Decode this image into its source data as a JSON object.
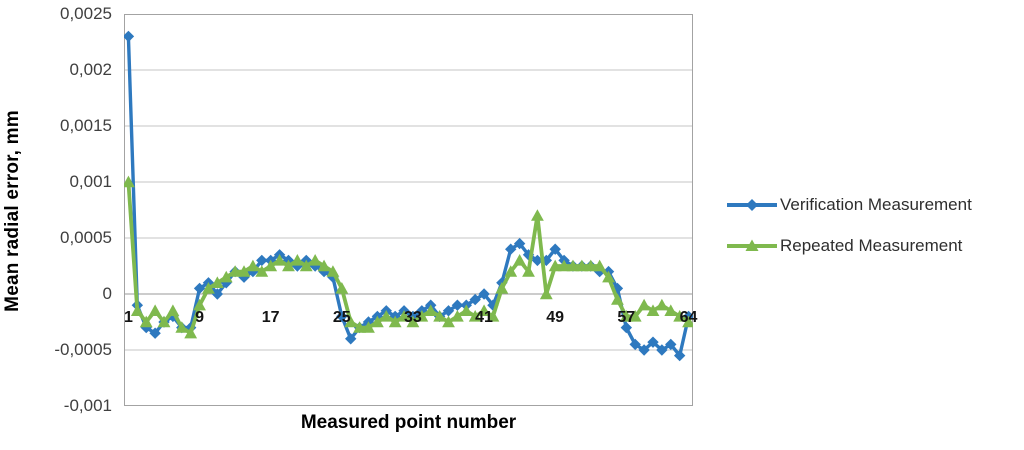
{
  "chart": {
    "y_axis_title": "Mean radial error, mm",
    "x_axis_title": "Measured point number",
    "y_tick_labels": [
      "0,0025",
      "0,002",
      "0,0015",
      "0,001",
      "0,0005",
      "0",
      "-0,0005",
      "-0,001"
    ],
    "x_tick_labels": [
      "1",
      "9",
      "17",
      "25",
      "33",
      "41",
      "49",
      "57",
      "64"
    ],
    "grid_color": "#c6c6c6",
    "border_color": "#a3a3a3",
    "zero_line_color": "#9a9a9a",
    "background": "#ffffff"
  },
  "legend": {
    "position": "right",
    "items": [
      {
        "label": "Verification Measurement",
        "marker": "diamond-icon"
      },
      {
        "label": "Repeated Measurement",
        "marker": "triangle-icon"
      }
    ]
  },
  "chart_data": {
    "type": "line",
    "title": "",
    "xlabel": "Measured point number",
    "ylabel": "Mean radial error, mm",
    "x_range": [
      1,
      64
    ],
    "ylim": [
      -0.001,
      0.0025
    ],
    "y_tick_step": 0.0005,
    "decimal_separator": ",",
    "grid": true,
    "legend_position": "right",
    "x_ticks_shown": [
      1,
      9,
      17,
      25,
      33,
      41,
      49,
      57,
      64
    ],
    "series": [
      {
        "name": "Verification Measurement",
        "color": "#2e79bf",
        "marker": "diamond",
        "line_width": 3.4,
        "values": [
          0.0023,
          -0.0001,
          -0.0003,
          -0.00035,
          -0.00025,
          -0.0002,
          -0.0003,
          -0.0003,
          5e-05,
          0.0001,
          0.0,
          0.0001,
          0.0002,
          0.00015,
          0.0002,
          0.0003,
          0.0003,
          0.00035,
          0.0003,
          0.00025,
          0.0003,
          0.00025,
          0.0002,
          0.00015,
          -0.0002,
          -0.0004,
          -0.0003,
          -0.00025,
          -0.0002,
          -0.00015,
          -0.0002,
          -0.00015,
          -0.0002,
          -0.00015,
          -0.0001,
          -0.0002,
          -0.00015,
          -0.0001,
          -0.0001,
          -5e-05,
          0.0,
          -0.0001,
          0.0001,
          0.0004,
          0.00045,
          0.00035,
          0.0003,
          0.0003,
          0.0004,
          0.0003,
          0.00025,
          0.00025,
          0.00025,
          0.0002,
          0.0002,
          5e-05,
          -0.0003,
          -0.00045,
          -0.0005,
          -0.00043,
          -0.0005,
          -0.00045,
          -0.00055,
          -0.0002
        ]
      },
      {
        "name": "Repeated Measurement",
        "color": "#7fb94e",
        "marker": "triangle",
        "line_width": 3.8,
        "values": [
          0.001,
          -0.00015,
          -0.00025,
          -0.00015,
          -0.00025,
          -0.00015,
          -0.0003,
          -0.00035,
          -0.0001,
          5e-05,
          0.0001,
          0.00015,
          0.0002,
          0.0002,
          0.00025,
          0.0002,
          0.00025,
          0.0003,
          0.00025,
          0.0003,
          0.00025,
          0.0003,
          0.00025,
          0.0002,
          5e-05,
          -0.00025,
          -0.0003,
          -0.0003,
          -0.00025,
          -0.0002,
          -0.00025,
          -0.0002,
          -0.00025,
          -0.0002,
          -0.00015,
          -0.0002,
          -0.00025,
          -0.0002,
          -0.00015,
          -0.0002,
          -0.00015,
          -0.0002,
          5e-05,
          0.0002,
          0.0003,
          0.0002,
          0.0007,
          0.0,
          0.00025,
          0.00025,
          0.00025,
          0.00025,
          0.00025,
          0.00025,
          0.00015,
          -5e-05,
          -0.0002,
          -0.0002,
          -0.0001,
          -0.00015,
          -0.0001,
          -0.00015,
          -0.0002,
          -0.00025
        ]
      }
    ]
  }
}
